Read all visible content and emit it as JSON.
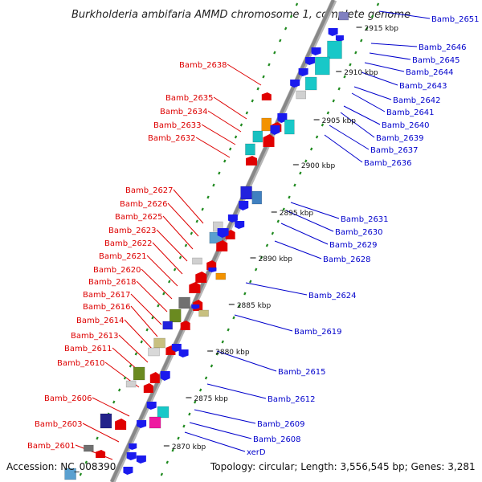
{
  "header": {
    "title": "Burkholderia ambifaria AMMD chromosome 1, complete genome"
  },
  "footer": {
    "accession": "Accession: NC_008390",
    "topology": "Topology: circular; Length: 3,556,545 bp; Genes: 3,281"
  },
  "colors": {
    "left_label": "#dd0000",
    "right_label": "#0000cc",
    "backbone": "#888888",
    "ruler_dash": "#1f8a1f"
  },
  "scale_labels": [
    "2915 kbp",
    "2910 kbp",
    "2905 kbp",
    "2900 kbp",
    "2895 kbp",
    "2890 kbp",
    "2885 kbp",
    "2880 kbp",
    "2875 kbp",
    "2870 kbp"
  ],
  "left_genes": [
    "Bamb_2638",
    "Bamb_2635",
    "Bamb_2634",
    "Bamb_2633",
    "Bamb_2632",
    "Bamb_2627",
    "Bamb_2626",
    "Bamb_2625",
    "Bamb_2623",
    "Bamb_2622",
    "Bamb_2621",
    "Bamb_2620",
    "Bamb_2618",
    "Bamb_2617",
    "Bamb_2616",
    "Bamb_2614",
    "Bamb_2613",
    "Bamb_2611",
    "Bamb_2610",
    "Bamb_2606",
    "Bamb_2603",
    "Bamb_2601"
  ],
  "right_genes": [
    "Bamb_2651",
    "Bamb_2646",
    "Bamb_2645",
    "Bamb_2644",
    "Bamb_2643",
    "Bamb_2642",
    "Bamb_2641",
    "Bamb_2640",
    "Bamb_2639",
    "Bamb_2637",
    "Bamb_2636",
    "Bamb_2631",
    "Bamb_2630",
    "Bamb_2629",
    "Bamb_2628",
    "Bamb_2624",
    "Bamb_2619",
    "Bamb_2615",
    "Bamb_2612",
    "Bamb_2609",
    "Bamb_2608",
    "xerD"
  ]
}
